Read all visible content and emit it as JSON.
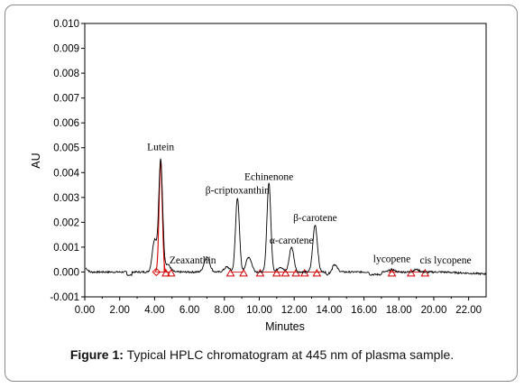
{
  "caption": {
    "label": "Figure 1:",
    "text": "Typical HPLC chromatogram at 445 nm of plasma sample."
  },
  "colors": {
    "trace": "#000000",
    "integration": "#d40000"
  },
  "chart_data": {
    "type": "line",
    "title": "",
    "xlabel": "Minutes",
    "ylabel": "AU",
    "xlim": [
      0,
      23
    ],
    "ylim": [
      -0.001,
      0.01
    ],
    "xticks": [
      "0.00",
      "2.00",
      "4.00",
      "6.00",
      "8.00",
      "10.00",
      "12.00",
      "14.00",
      "16.00",
      "18.00",
      "20.00",
      "22.00"
    ],
    "yticks": [
      "-0.001",
      "0.000",
      "0.001",
      "0.002",
      "0.003",
      "0.004",
      "0.005",
      "0.006",
      "0.007",
      "0.008",
      "0.009",
      "0.010"
    ],
    "grid": false,
    "peaks": [
      {
        "name": "Lutein",
        "rt": 4.35,
        "height": 0.0045
      },
      {
        "name": "Zeaxanthin",
        "rt": 4.75,
        "height": 0.0003
      },
      {
        "name": "β-criptoxanthin",
        "rt": 8.75,
        "height": 0.003
      },
      {
        "name": "Echinenone",
        "rt": 10.55,
        "height": 0.0036
      },
      {
        "name": "α-carotene",
        "rt": 11.85,
        "height": 0.001
      },
      {
        "name": "β-carotene",
        "rt": 13.2,
        "height": 0.0019
      },
      {
        "name": "lycopene",
        "rt": 17.6,
        "height": 0.0001
      },
      {
        "name": "cis lycopene",
        "rt": 19.0,
        "height": 0.0001
      }
    ],
    "minor_peaks": [
      {
        "rt": 4.0,
        "height": 0.0013
      },
      {
        "rt": 7.0,
        "height": 0.0006
      },
      {
        "rt": 8.15,
        "height": 0.0002
      },
      {
        "rt": 9.4,
        "height": 0.0006
      },
      {
        "rt": 11.2,
        "height": 0.0002
      },
      {
        "rt": 14.3,
        "height": 0.0003
      }
    ]
  }
}
